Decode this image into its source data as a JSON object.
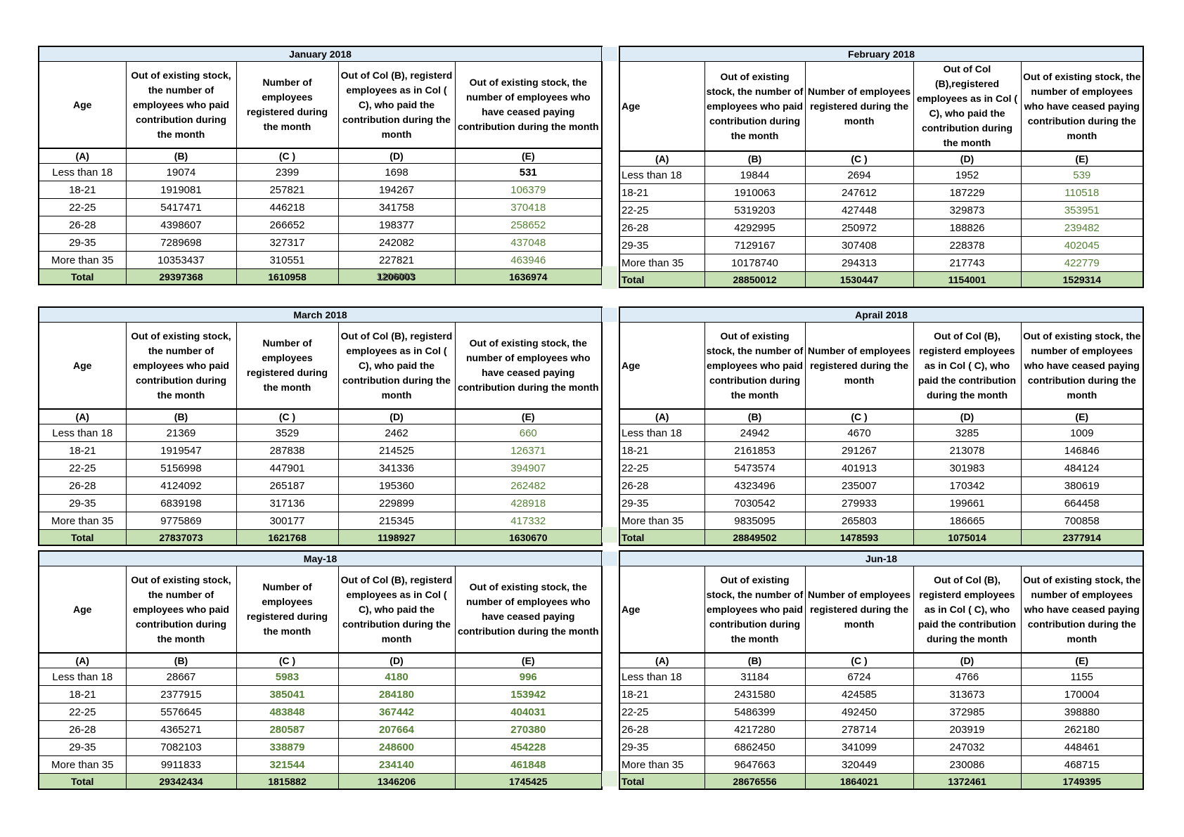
{
  "tables": [
    {
      "title": "January 2018",
      "headers": [
        "Age",
        "Out of existing stock, the number of employees who paid contribution during the month",
        "Number of employees registered during the month",
        "Out of Col (B), registerd employees as in Col ( C), who paid the contribution during the month",
        "Out of existing stock, the number of  employees who have ceased paying contribution during the month"
      ],
      "letters": [
        "(A)",
        "(B)",
        "(C )",
        "(D)",
        "(E)"
      ],
      "rows": [
        [
          "Less than 18",
          19074,
          2399,
          1698,
          531
        ],
        [
          "18-21",
          1919081,
          257821,
          194267,
          106379
        ],
        [
          "22-25",
          5417471,
          446218,
          341758,
          370418
        ],
        [
          "26-28",
          4398607,
          266652,
          198377,
          258652
        ],
        [
          "29-35",
          7289698,
          327317,
          242082,
          437048
        ],
        [
          "More than 35",
          10353437,
          310551,
          227821,
          463946
        ]
      ],
      "total": [
        "Total",
        29397368,
        1610958,
        1206003,
        1636974
      ],
      "stray": "1206003"
    },
    {
      "title": "February 2018",
      "headers": [
        "Age",
        "Out of existing stock, the number of employees who paid contribution during the month",
        "Number of employees registered during the month",
        "Out of Col (B),registered employees as in Col ( C), who paid the contribution during the month",
        "Out of existing stock, the number of employees who have ceased paying contribution during the month"
      ],
      "letters": [
        "(A)",
        "(B)",
        "(C )",
        "(D)",
        "(E)"
      ],
      "rows": [
        [
          "Less than 18",
          19844,
          2694,
          1952,
          539
        ],
        [
          "18-21",
          1910063,
          247612,
          187229,
          110518
        ],
        [
          "22-25",
          5319203,
          427448,
          329873,
          353951
        ],
        [
          "26-28",
          4292995,
          250972,
          188826,
          239482
        ],
        [
          "29-35",
          7129167,
          307408,
          228378,
          402045
        ],
        [
          "More than 35",
          10178740,
          294313,
          217743,
          422779
        ]
      ],
      "total": [
        "Total",
        28850012,
        1530447,
        1154001,
        1529314
      ]
    },
    {
      "title": "March 2018",
      "headers": [
        "Age",
        "Out of existing stock, the number of employees who paid contribution during the month",
        "Number of employees registered during the month",
        "Out of Col (B), registerd employees as in Col ( C), who paid the contribution during the month",
        "Out of existing stock, the number of  employees who have ceased paying contribution during the month"
      ],
      "letters": [
        "(A)",
        "(B)",
        "(C )",
        "(D)",
        "(E)"
      ],
      "rows": [
        [
          "Less than 18",
          21369,
          3529,
          2462,
          660
        ],
        [
          "18-21",
          1919547,
          287838,
          214525,
          126371
        ],
        [
          "22-25",
          5156998,
          447901,
          341336,
          394907
        ],
        [
          "26-28",
          4124092,
          265187,
          195360,
          262482
        ],
        [
          "29-35",
          6839198,
          317136,
          229899,
          428918
        ],
        [
          "More than 35",
          9775869,
          300177,
          215345,
          417332
        ]
      ],
      "total": [
        "Total",
        27837073,
        1621768,
        1198927,
        1630670
      ]
    },
    {
      "title": "Aprail 2018",
      "headers": [
        "Age",
        "Out of existing stock, the number of employees who paid contribution during the month",
        "Number of employees registered during the month",
        "Out of Col (B), registerd employees as in Col ( C), who paid the contribution during the month",
        "Out of existing stock, the number of employees who have ceased paying contribution during the month"
      ],
      "letters": [
        "(A)",
        "(B)",
        "(C )",
        "(D)",
        "(E)"
      ],
      "rows": [
        [
          "Less than 18",
          24942,
          4670,
          3285,
          1009
        ],
        [
          "18-21",
          2161853,
          291267,
          213078,
          146846
        ],
        [
          "22-25",
          5473574,
          401913,
          301983,
          484124
        ],
        [
          "26-28",
          4323496,
          235007,
          170342,
          380619
        ],
        [
          "29-35",
          7030542,
          279933,
          199661,
          664458
        ],
        [
          "More than 35",
          9835095,
          265803,
          186665,
          700858
        ]
      ],
      "total": [
        "Total",
        28849502,
        1478593,
        1075014,
        2377914
      ]
    },
    {
      "title": "May-18",
      "headers": [
        "Age",
        "Out of existing stock, the number of employees who paid contribution during the month",
        "Number of employees registered during the month",
        "Out of Col (B), registerd employees as in Col ( C), who paid the contribution during the month",
        "Out of existing stock, the number of  employees who have ceased paying contribution during the month"
      ],
      "letters": [
        "(A)",
        "(B)",
        "(C )",
        "(D)",
        "(E)"
      ],
      "rows": [
        [
          "Less than 18",
          28667,
          5983,
          4180,
          996
        ],
        [
          "18-21",
          2377915,
          385041,
          284180,
          153942
        ],
        [
          "22-25",
          5576645,
          483848,
          367442,
          404031
        ],
        [
          "26-28",
          4365271,
          280587,
          207664,
          270380
        ],
        [
          "29-35",
          7082103,
          338879,
          248600,
          454228
        ],
        [
          "More than 35",
          9911833,
          321544,
          234140,
          461848
        ]
      ],
      "total": [
        "Total",
        29342434,
        1815882,
        1346206,
        1745425
      ]
    },
    {
      "title": "Jun-18",
      "headers": [
        "Age",
        "Out of existing stock, the number of employees who paid contribution during the month",
        "Number of employees registered during the month",
        "Out of Col (B), registerd employees as in Col ( C), who paid the contribution during the month",
        "Out of existing stock, the number of employees who have ceased paying contribution during the month"
      ],
      "letters": [
        "(A)",
        "(B)",
        "(C )",
        "(D)",
        "(E)"
      ],
      "rows": [
        [
          "Less than 18",
          31184,
          6724,
          4766,
          1155
        ],
        [
          "18-21",
          2431580,
          424585,
          313673,
          170004
        ],
        [
          "22-25",
          5486399,
          492450,
          372985,
          398880
        ],
        [
          "26-28",
          4217280,
          278714,
          203919,
          262180
        ],
        [
          "29-35",
          6862450,
          341099,
          247032,
          448461
        ],
        [
          "More than 35",
          9647663,
          320449,
          230086,
          468715
        ]
      ],
      "total": [
        "Total",
        28676556,
        1864021,
        1372461,
        1749395
      ]
    }
  ]
}
